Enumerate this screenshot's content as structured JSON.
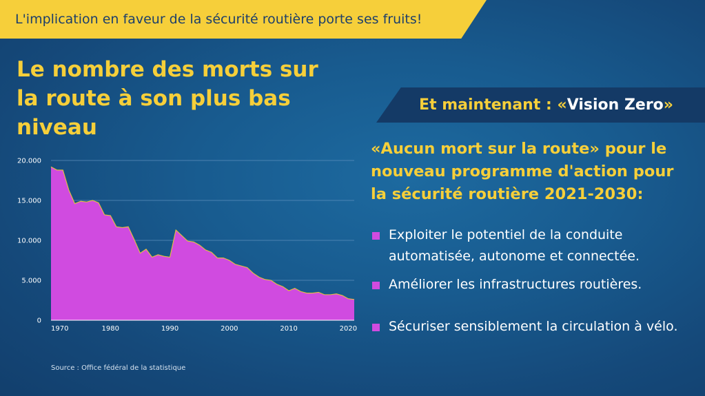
{
  "banner": {
    "text": "L'implication en faveur de la sécurité routière porte ses fruits!"
  },
  "headline": {
    "line1": "Le nombre des morts sur",
    "line2": "la route à son plus bas niveau"
  },
  "vision": {
    "prefix": "Et maintenant : «",
    "name": "Vision Zero",
    "suffix": "»"
  },
  "program": {
    "line1": "«Aucun mort sur la route» pour le",
    "line2": "nouveau programme d'action pour",
    "line3": "la sécurité routière 2021-2030:"
  },
  "bullets": [
    {
      "line1": "Exploiter le potentiel de la conduite",
      "line2": "automatisée, autonome et connectée."
    },
    {
      "line1": "Améliorer les infrastructures routières."
    },
    {
      "line1": "Sécuriser sensiblement la circulation à vélo."
    }
  ],
  "source": "Source : Office fédéral de la statistique",
  "colors": {
    "accent": "#f6cf3a",
    "area": "#d04be0",
    "background": "#185b8f"
  },
  "icons": [
    "square-bullet-icon"
  ],
  "chart_data": {
    "type": "area",
    "title": "",
    "xlabel": "",
    "ylabel": "",
    "xlim": [
      1970,
      2021
    ],
    "ylim": [
      0,
      20000
    ],
    "x_ticks": [
      1970,
      1980,
      1990,
      2000,
      2010,
      2020
    ],
    "x_tick_labels": [
      "1970",
      "1980",
      "1990",
      "2000",
      "2010",
      "2020"
    ],
    "y_ticks": [
      0,
      5000,
      10000,
      15000,
      20000
    ],
    "y_tick_labels": [
      "0",
      "5.000",
      "10.000",
      "15.000",
      "20.000"
    ],
    "grid": true,
    "series": [
      {
        "x": [
          1970,
          1971,
          1972,
          1973,
          1974,
          1975,
          1976,
          1977,
          1978,
          1979,
          1980,
          1981,
          1982,
          1983,
          1984,
          1985,
          1986,
          1987,
          1988,
          1989,
          1990,
          1991,
          1992,
          1993,
          1994,
          1995,
          1996,
          1997,
          1998,
          1999,
          2000,
          2001,
          2002,
          2003,
          2004,
          2005,
          2006,
          2007,
          2008,
          2009,
          2010,
          2011,
          2012,
          2013,
          2014,
          2015,
          2016,
          2017,
          2018,
          2019,
          2020,
          2021
        ],
        "values": [
          19200,
          18800,
          18800,
          16300,
          14600,
          14900,
          14800,
          15000,
          14700,
          13200,
          13100,
          11700,
          11600,
          11700,
          10100,
          8400,
          8900,
          7900,
          8200,
          8000,
          7900,
          11300,
          10600,
          9900,
          9800,
          9400,
          8800,
          8500,
          7800,
          7800,
          7500,
          7000,
          6800,
          6600,
          5900,
          5400,
          5100,
          5000,
          4500,
          4200,
          3700,
          4000,
          3600,
          3400,
          3400,
          3500,
          3200,
          3200,
          3300,
          3100,
          2700,
          2600
        ]
      }
    ]
  }
}
